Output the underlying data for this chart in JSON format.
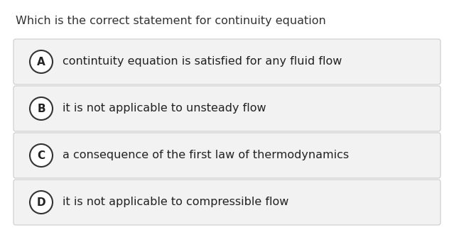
{
  "question": "Which is the correct statement for continuity equation",
  "options": [
    {
      "label": "A",
      "text": "contintuity equation is satisfied for any fluid flow"
    },
    {
      "label": "B",
      "text": "it is not applicable to unsteady flow"
    },
    {
      "label": "C",
      "text": "a consequence of the first law of thermodynamics"
    },
    {
      "label": "D",
      "text": "it is not applicable to compressible flow"
    }
  ],
  "bg_color": "#ffffff",
  "option_bg_color": "#f2f2f2",
  "option_border_color": "#cccccc",
  "question_color": "#333333",
  "option_text_color": "#222222",
  "circle_edge_color": "#333333",
  "circle_face_color": "#ffffff",
  "question_fontsize": 11.5,
  "option_fontsize": 11.5,
  "label_fontsize": 11,
  "fig_width": 6.39,
  "fig_height": 3.48
}
